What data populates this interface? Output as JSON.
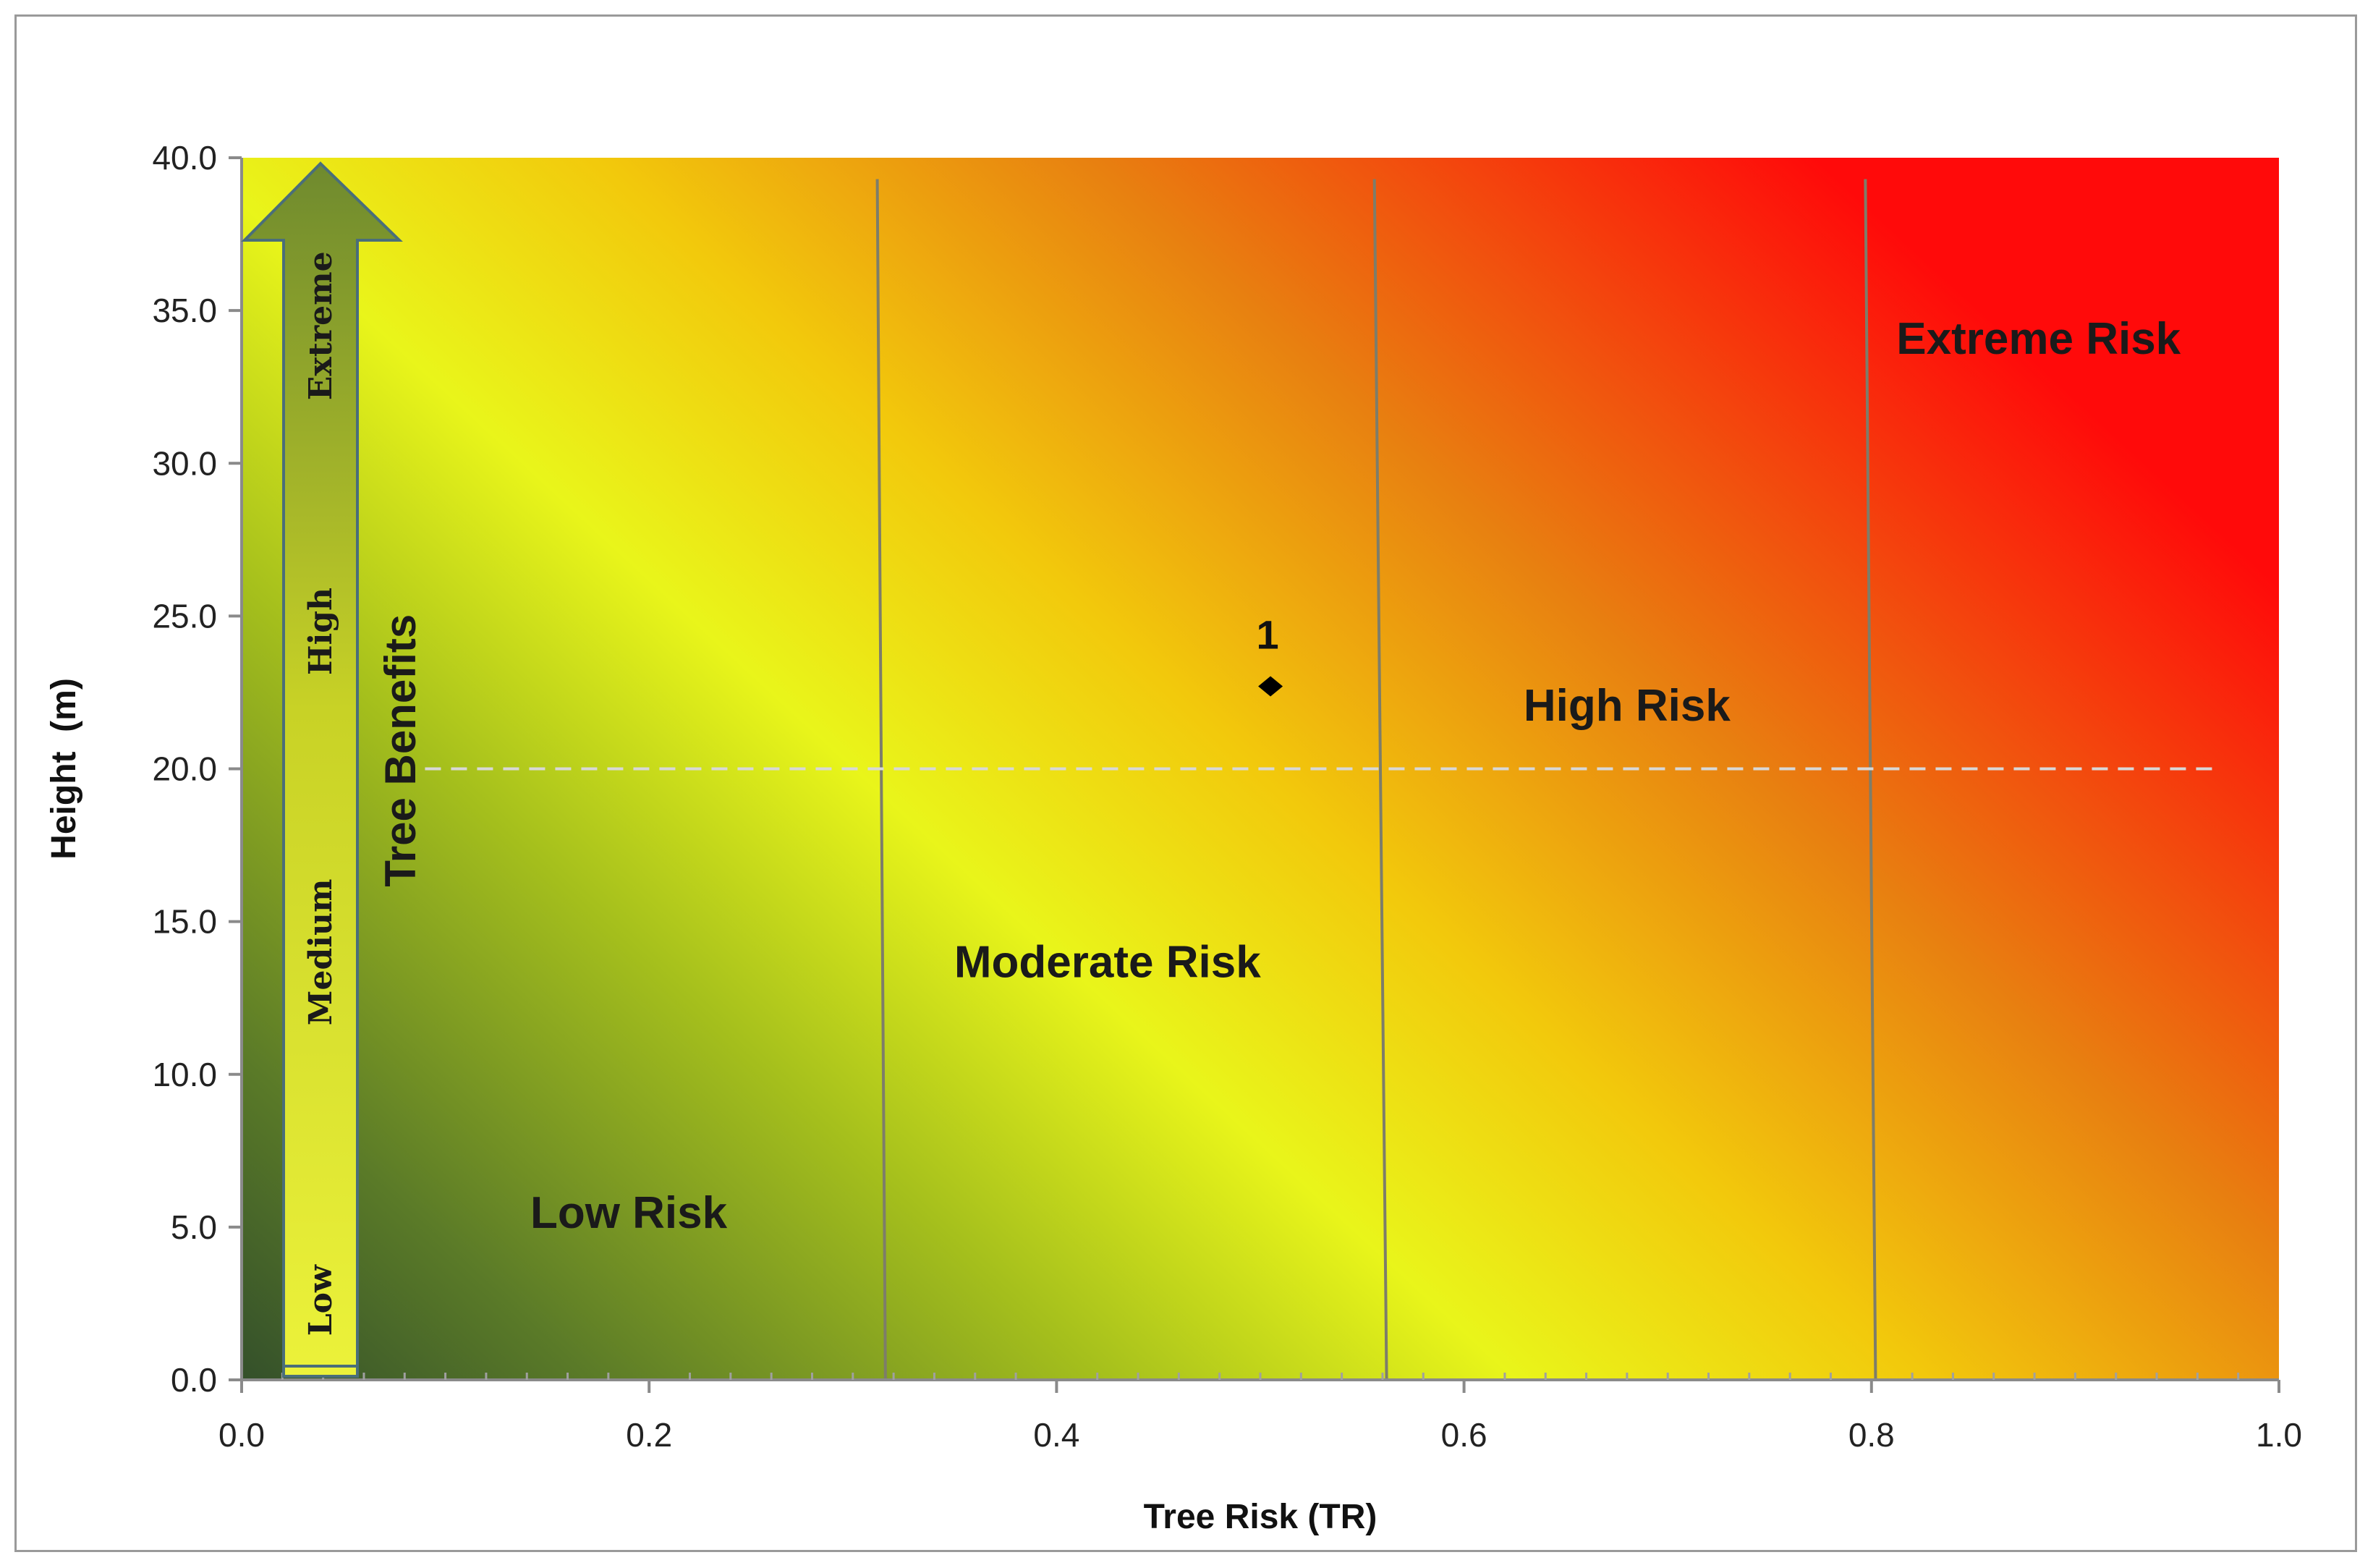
{
  "chart_data": {
    "type": "scatter",
    "title": "",
    "xlabel": "Tree Risk (TR)",
    "ylabel": "Height  (m)",
    "xlim": [
      0.0,
      1.0
    ],
    "ylim": [
      0.0,
      40.0
    ],
    "x_ticks": [
      "0.0",
      "0.2",
      "0.4",
      "0.6",
      "0.8",
      "1.0"
    ],
    "x_tick_values": [
      0.0,
      0.2,
      0.4,
      0.6,
      0.8,
      1.0
    ],
    "y_ticks": [
      "0.0",
      "5.0",
      "10.0",
      "15.0",
      "20.0",
      "25.0",
      "30.0",
      "35.0",
      "40.0"
    ],
    "y_tick_values": [
      0,
      5,
      10,
      15,
      20,
      25,
      30,
      35,
      40
    ],
    "grid": false,
    "background_gradient": [
      "#3d5a2a",
      "#e6f21a",
      "#f4a300",
      "#ff0a0a"
    ],
    "points": [
      {
        "label": "1",
        "x": 0.505,
        "y": 22.7
      }
    ],
    "reference_line": {
      "y": 20.0,
      "style": "dashed"
    },
    "zone_boundaries": [
      {
        "x_bottom": 0.316,
        "x_top": 0.312
      },
      {
        "x_bottom": 0.562,
        "x_top": 0.556
      },
      {
        "x_bottom": 0.802,
        "x_top": 0.797
      }
    ],
    "zones": [
      {
        "label": "Low Risk",
        "x": 0.19,
        "y": 5.5
      },
      {
        "label": "Moderate Risk",
        "x": 0.425,
        "y": 13.7
      },
      {
        "label": "High Risk",
        "x": 0.68,
        "y": 22.1
      },
      {
        "label": "Extreme Risk",
        "x": 0.882,
        "y": 34.1
      }
    ],
    "benefits_arrow": {
      "title": "Tree Benefits",
      "levels": [
        {
          "label": "Low",
          "y": 2.6
        },
        {
          "label": "Medium",
          "y": 14.0
        },
        {
          "label": "High",
          "y": 24.5
        },
        {
          "label": "Extreme",
          "y": 34.5
        }
      ]
    }
  }
}
